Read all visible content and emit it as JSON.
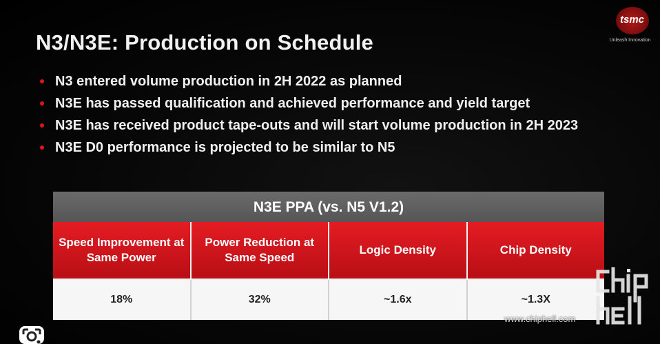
{
  "slide": {
    "title": "N3/N3E: Production on Schedule",
    "logo": {
      "word": "tsmc",
      "tagline": "Unleash Innovation"
    },
    "bullets": [
      "N3 entered volume production in 2H 2022 as planned",
      "N3E has passed qualification and achieved performance and yield target",
      "N3E has received product tape-outs and will start volume production in 2H 2023",
      "N3E D0 performance is projected to be similar to N5"
    ],
    "table": {
      "title": "N3E PPA (vs. N5 V1.2)",
      "headers": [
        "Speed Improvement at Same Power",
        "Power Reduction at Same Speed",
        "Logic Density",
        "Chip Density"
      ],
      "values": [
        "18%",
        "32%",
        "~1.6x",
        "~1.3X"
      ]
    }
  },
  "watermark": {
    "site": "www.chiphell.com",
    "brand": "chiphell"
  },
  "colors": {
    "accent_red": "#e41c23",
    "table_title_gray": "#5f5f5f",
    "background": "#000000"
  },
  "overlay": {
    "icon": "lens-search-icon"
  }
}
